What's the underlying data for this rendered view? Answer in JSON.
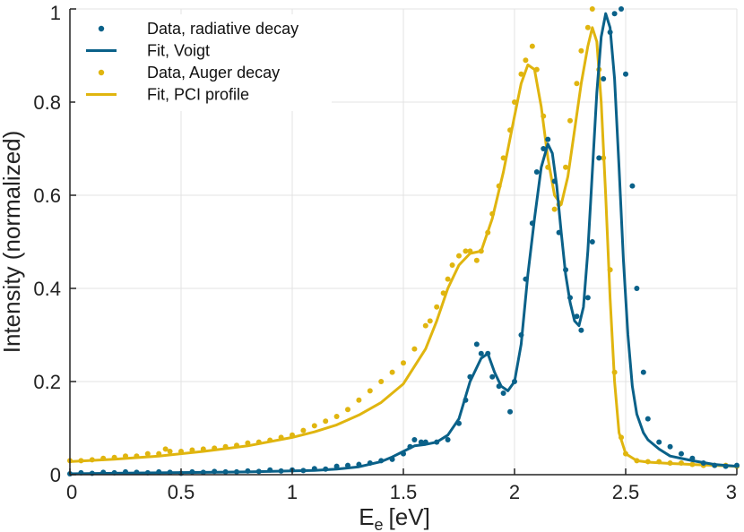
{
  "chart_data": {
    "type": "scatter",
    "title": "",
    "xlabel": "E",
    "xlabel_subscript": "e",
    "xlabel_unit": "[eV]",
    "ylabel": "Intensity (normalized)",
    "xlim": [
      0,
      3
    ],
    "ylim": [
      0,
      1
    ],
    "xticks": [
      0,
      0.5,
      1,
      1.5,
      2,
      2.5,
      3
    ],
    "xtick_labels": [
      "0",
      "0.5",
      "1",
      "1.5",
      "2",
      "2.5",
      "3"
    ],
    "yticks": [
      0,
      0.2,
      0.4,
      0.6,
      0.8,
      1
    ],
    "ytick_labels": [
      "0",
      "0.2",
      "0.4",
      "0.6",
      "0.8",
      "1"
    ],
    "grid": true,
    "legend_position": "top-left",
    "legend": [
      {
        "label": "Data, radiative decay",
        "kind": "marker",
        "color": "#0a6189"
      },
      {
        "label": "Fit, Voigt",
        "kind": "line",
        "color": "#0a6189"
      },
      {
        "label": "Data, Auger decay",
        "kind": "marker",
        "color": "#e0b50f"
      },
      {
        "label": "Fit, PCI profile",
        "kind": "line",
        "color": "#e0b50f"
      }
    ],
    "series": [
      {
        "name": "Data, Auger decay",
        "kind": "scatter",
        "color": "#e0b50f",
        "x": [
          0,
          0.05,
          0.1,
          0.15,
          0.2,
          0.25,
          0.3,
          0.35,
          0.4,
          0.43,
          0.45,
          0.5,
          0.55,
          0.6,
          0.65,
          0.7,
          0.75,
          0.8,
          0.85,
          0.9,
          0.95,
          1.0,
          1.05,
          1.1,
          1.15,
          1.2,
          1.25,
          1.3,
          1.35,
          1.4,
          1.45,
          1.5,
          1.55,
          1.6,
          1.62,
          1.65,
          1.68,
          1.7,
          1.72,
          1.75,
          1.78,
          1.8,
          1.83,
          1.85,
          1.88,
          1.9,
          1.93,
          1.95,
          1.98,
          2.0,
          2.03,
          2.05,
          2.08,
          2.1,
          2.13,
          2.15,
          2.18,
          2.2,
          2.23,
          2.25,
          2.28,
          2.3,
          2.33,
          2.35,
          2.38,
          2.4,
          2.43,
          2.45,
          2.48,
          2.5,
          2.55,
          2.6,
          2.65,
          2.7,
          2.75,
          2.8,
          2.85,
          2.9,
          2.95,
          3.0
        ],
        "y": [
          0.03,
          0.03,
          0.032,
          0.035,
          0.037,
          0.04,
          0.04,
          0.045,
          0.045,
          0.055,
          0.05,
          0.05,
          0.053,
          0.055,
          0.057,
          0.06,
          0.063,
          0.068,
          0.07,
          0.074,
          0.08,
          0.085,
          0.095,
          0.105,
          0.115,
          0.125,
          0.14,
          0.16,
          0.18,
          0.2,
          0.22,
          0.24,
          0.27,
          0.32,
          0.33,
          0.36,
          0.39,
          0.42,
          0.45,
          0.47,
          0.48,
          0.48,
          0.46,
          0.48,
          0.52,
          0.56,
          0.62,
          0.68,
          0.74,
          0.8,
          0.86,
          0.89,
          0.92,
          0.87,
          0.77,
          0.66,
          0.57,
          0.58,
          0.66,
          0.76,
          0.84,
          0.91,
          0.96,
          1.0,
          0.87,
          0.68,
          0.44,
          0.22,
          0.08,
          0.045,
          0.03,
          0.028,
          0.028,
          0.025,
          0.025,
          0.022,
          0.02,
          0.02,
          0.02,
          0.018
        ]
      },
      {
        "name": "Fit, PCI profile",
        "kind": "line",
        "color": "#e0b50f",
        "x": [
          0,
          0.2,
          0.4,
          0.6,
          0.8,
          1.0,
          1.1,
          1.2,
          1.3,
          1.4,
          1.5,
          1.6,
          1.65,
          1.7,
          1.75,
          1.8,
          1.85,
          1.9,
          1.95,
          2.0,
          2.03,
          2.06,
          2.09,
          2.12,
          2.15,
          2.18,
          2.21,
          2.24,
          2.27,
          2.3,
          2.33,
          2.35,
          2.37,
          2.39,
          2.41,
          2.43,
          2.45,
          2.47,
          2.5,
          2.55,
          2.6,
          2.7,
          2.8,
          2.9,
          3.0
        ],
        "y": [
          0.028,
          0.033,
          0.04,
          0.05,
          0.062,
          0.08,
          0.092,
          0.107,
          0.128,
          0.155,
          0.195,
          0.27,
          0.33,
          0.4,
          0.45,
          0.475,
          0.48,
          0.55,
          0.65,
          0.77,
          0.84,
          0.88,
          0.87,
          0.79,
          0.68,
          0.6,
          0.58,
          0.64,
          0.74,
          0.84,
          0.92,
          0.96,
          0.93,
          0.8,
          0.6,
          0.38,
          0.2,
          0.09,
          0.045,
          0.03,
          0.027,
          0.024,
          0.022,
          0.02,
          0.018
        ]
      },
      {
        "name": "Data, radiative decay",
        "kind": "scatter",
        "color": "#0a6189",
        "x": [
          0,
          0.05,
          0.1,
          0.15,
          0.2,
          0.25,
          0.3,
          0.35,
          0.4,
          0.45,
          0.5,
          0.55,
          0.6,
          0.65,
          0.7,
          0.75,
          0.8,
          0.85,
          0.9,
          0.95,
          1.0,
          1.05,
          1.1,
          1.15,
          1.2,
          1.25,
          1.3,
          1.35,
          1.4,
          1.45,
          1.5,
          1.53,
          1.55,
          1.58,
          1.6,
          1.65,
          1.7,
          1.75,
          1.78,
          1.8,
          1.83,
          1.85,
          1.88,
          1.9,
          1.93,
          1.95,
          1.98,
          2.0,
          2.03,
          2.05,
          2.08,
          2.1,
          2.13,
          2.15,
          2.18,
          2.2,
          2.23,
          2.25,
          2.28,
          2.3,
          2.33,
          2.35,
          2.38,
          2.4,
          2.43,
          2.45,
          2.48,
          2.5,
          2.53,
          2.55,
          2.58,
          2.6,
          2.65,
          2.7,
          2.75,
          2.8,
          2.85,
          2.9,
          2.95,
          3.0
        ],
        "y": [
          0.002,
          0.004,
          0.003,
          0.005,
          0.004,
          0.006,
          0.005,
          0.004,
          0.006,
          0.005,
          0.003,
          0.006,
          0.005,
          0.007,
          0.006,
          0.006,
          0.008,
          0.007,
          0.01,
          0.008,
          0.01,
          0.009,
          0.013,
          0.012,
          0.018,
          0.02,
          0.022,
          0.025,
          0.03,
          0.033,
          0.045,
          0.06,
          0.075,
          0.07,
          0.07,
          0.07,
          0.075,
          0.11,
          0.16,
          0.21,
          0.28,
          0.26,
          0.26,
          0.21,
          0.19,
          0.175,
          0.135,
          0.2,
          0.3,
          0.42,
          0.54,
          0.65,
          0.7,
          0.72,
          0.63,
          0.52,
          0.44,
          0.38,
          0.34,
          0.31,
          0.38,
          0.5,
          0.68,
          0.85,
          0.95,
          0.99,
          1.0,
          0.86,
          0.62,
          0.4,
          0.22,
          0.12,
          0.07,
          0.06,
          0.045,
          0.035,
          0.025,
          0.02,
          0.018,
          0.02
        ]
      },
      {
        "name": "Fit, Voigt",
        "kind": "line",
        "color": "#0a6189",
        "x": [
          0,
          0.2,
          0.4,
          0.6,
          0.8,
          1.0,
          1.1,
          1.2,
          1.3,
          1.4,
          1.45,
          1.5,
          1.55,
          1.6,
          1.65,
          1.7,
          1.75,
          1.8,
          1.85,
          1.88,
          1.91,
          1.94,
          1.97,
          2.0,
          2.03,
          2.06,
          2.09,
          2.12,
          2.15,
          2.17,
          2.19,
          2.21,
          2.23,
          2.25,
          2.27,
          2.29,
          2.31,
          2.33,
          2.35,
          2.37,
          2.39,
          2.41,
          2.43,
          2.45,
          2.47,
          2.49,
          2.51,
          2.53,
          2.55,
          2.58,
          2.6,
          2.65,
          2.7,
          2.8,
          2.9,
          3.0
        ],
        "y": [
          0.002,
          0.003,
          0.004,
          0.005,
          0.006,
          0.008,
          0.009,
          0.012,
          0.017,
          0.028,
          0.038,
          0.05,
          0.062,
          0.065,
          0.07,
          0.085,
          0.12,
          0.2,
          0.25,
          0.26,
          0.22,
          0.19,
          0.18,
          0.2,
          0.28,
          0.43,
          0.55,
          0.66,
          0.71,
          0.69,
          0.62,
          0.52,
          0.43,
          0.37,
          0.33,
          0.32,
          0.36,
          0.48,
          0.65,
          0.82,
          0.94,
          0.99,
          0.96,
          0.85,
          0.66,
          0.46,
          0.3,
          0.19,
          0.13,
          0.09,
          0.075,
          0.055,
          0.04,
          0.03,
          0.022,
          0.018
        ]
      }
    ]
  }
}
